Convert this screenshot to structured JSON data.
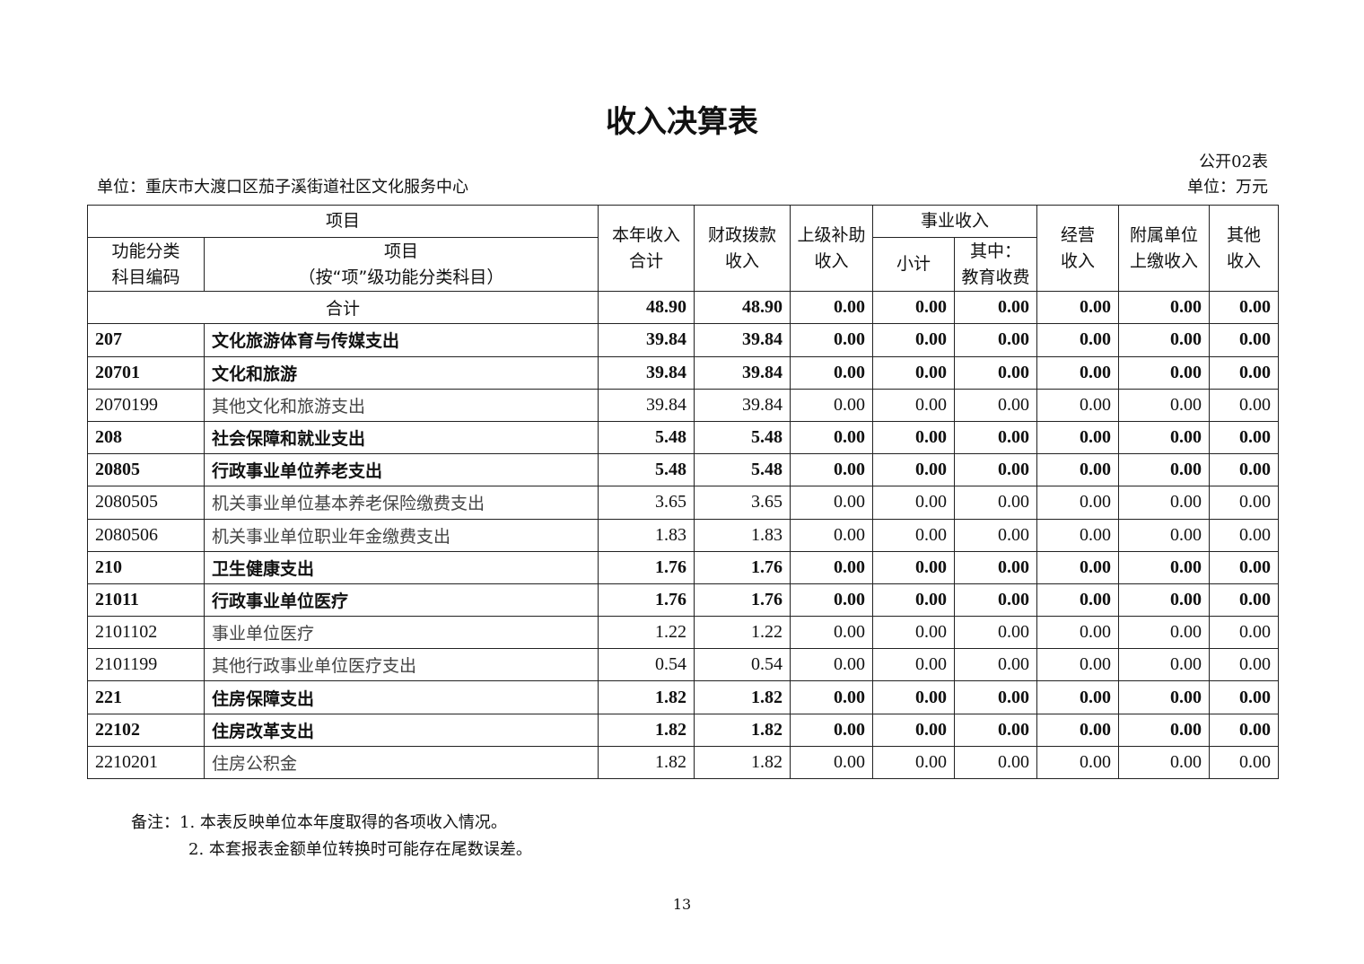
{
  "title": "收入决算表",
  "table_no": "公开02表",
  "unit_org": "单位：重庆市大渡口区茄子溪街道社区文化服务中心",
  "unit_money": "单位：万元",
  "headers": {
    "item": "项目",
    "code": "功能分类\n科目编码",
    "item_name": "项目\n（按“项”级功能分类科目）",
    "total": "本年收入\n合计",
    "fiscal": "财政拨款\n收入",
    "superior": "上级补助\n收入",
    "career": "事业收入",
    "subtotal": "小计",
    "edu": "其中：\n教育收费",
    "business": "经营\n收入",
    "affiliate": "附属单位\n上缴收入",
    "other": "其他\n收入"
  },
  "total_row": {
    "label": "合计",
    "values": [
      "48.90",
      "48.90",
      "0.00",
      "0.00",
      "0.00",
      "0.00",
      "0.00",
      "0.00"
    ]
  },
  "rows": [
    {
      "code": "207",
      "name": "文化旅游体育与传媒支出",
      "bold": true,
      "values": [
        "39.84",
        "39.84",
        "0.00",
        "0.00",
        "0.00",
        "0.00",
        "0.00",
        "0.00"
      ]
    },
    {
      "code": "20701",
      "name": "文化和旅游",
      "bold": true,
      "values": [
        "39.84",
        "39.84",
        "0.00",
        "0.00",
        "0.00",
        "0.00",
        "0.00",
        "0.00"
      ]
    },
    {
      "code": "2070199",
      "name": "其他文化和旅游支出",
      "bold": false,
      "values": [
        "39.84",
        "39.84",
        "0.00",
        "0.00",
        "0.00",
        "0.00",
        "0.00",
        "0.00"
      ]
    },
    {
      "code": "208",
      "name": "社会保障和就业支出",
      "bold": true,
      "values": [
        "5.48",
        "5.48",
        "0.00",
        "0.00",
        "0.00",
        "0.00",
        "0.00",
        "0.00"
      ]
    },
    {
      "code": "20805",
      "name": "行政事业单位养老支出",
      "bold": true,
      "values": [
        "5.48",
        "5.48",
        "0.00",
        "0.00",
        "0.00",
        "0.00",
        "0.00",
        "0.00"
      ]
    },
    {
      "code": "2080505",
      "name": "机关事业单位基本养老保险缴费支出",
      "bold": false,
      "values": [
        "3.65",
        "3.65",
        "0.00",
        "0.00",
        "0.00",
        "0.00",
        "0.00",
        "0.00"
      ]
    },
    {
      "code": "2080506",
      "name": "机关事业单位职业年金缴费支出",
      "bold": false,
      "values": [
        "1.83",
        "1.83",
        "0.00",
        "0.00",
        "0.00",
        "0.00",
        "0.00",
        "0.00"
      ]
    },
    {
      "code": "210",
      "name": "卫生健康支出",
      "bold": true,
      "values": [
        "1.76",
        "1.76",
        "0.00",
        "0.00",
        "0.00",
        "0.00",
        "0.00",
        "0.00"
      ]
    },
    {
      "code": "21011",
      "name": "行政事业单位医疗",
      "bold": true,
      "values": [
        "1.76",
        "1.76",
        "0.00",
        "0.00",
        "0.00",
        "0.00",
        "0.00",
        "0.00"
      ]
    },
    {
      "code": "2101102",
      "name": "事业单位医疗",
      "bold": false,
      "values": [
        "1.22",
        "1.22",
        "0.00",
        "0.00",
        "0.00",
        "0.00",
        "0.00",
        "0.00"
      ]
    },
    {
      "code": "2101199",
      "name": "其他行政事业单位医疗支出",
      "bold": false,
      "values": [
        "0.54",
        "0.54",
        "0.00",
        "0.00",
        "0.00",
        "0.00",
        "0.00",
        "0.00"
      ]
    },
    {
      "code": "221",
      "name": "住房保障支出",
      "bold": true,
      "values": [
        "1.82",
        "1.82",
        "0.00",
        "0.00",
        "0.00",
        "0.00",
        "0.00",
        "0.00"
      ]
    },
    {
      "code": "22102",
      "name": "住房改革支出",
      "bold": true,
      "values": [
        "1.82",
        "1.82",
        "0.00",
        "0.00",
        "0.00",
        "0.00",
        "0.00",
        "0.00"
      ]
    },
    {
      "code": "2210201",
      "name": "住房公积金",
      "bold": false,
      "values": [
        "1.82",
        "1.82",
        "0.00",
        "0.00",
        "0.00",
        "0.00",
        "0.00",
        "0.00"
      ]
    }
  ],
  "notes": [
    "备注：1. 本表反映单位本年度取得的各项收入情况。",
    "2. 本套报表金额单位转换时可能存在尾数误差。"
  ],
  "page_number": "13"
}
